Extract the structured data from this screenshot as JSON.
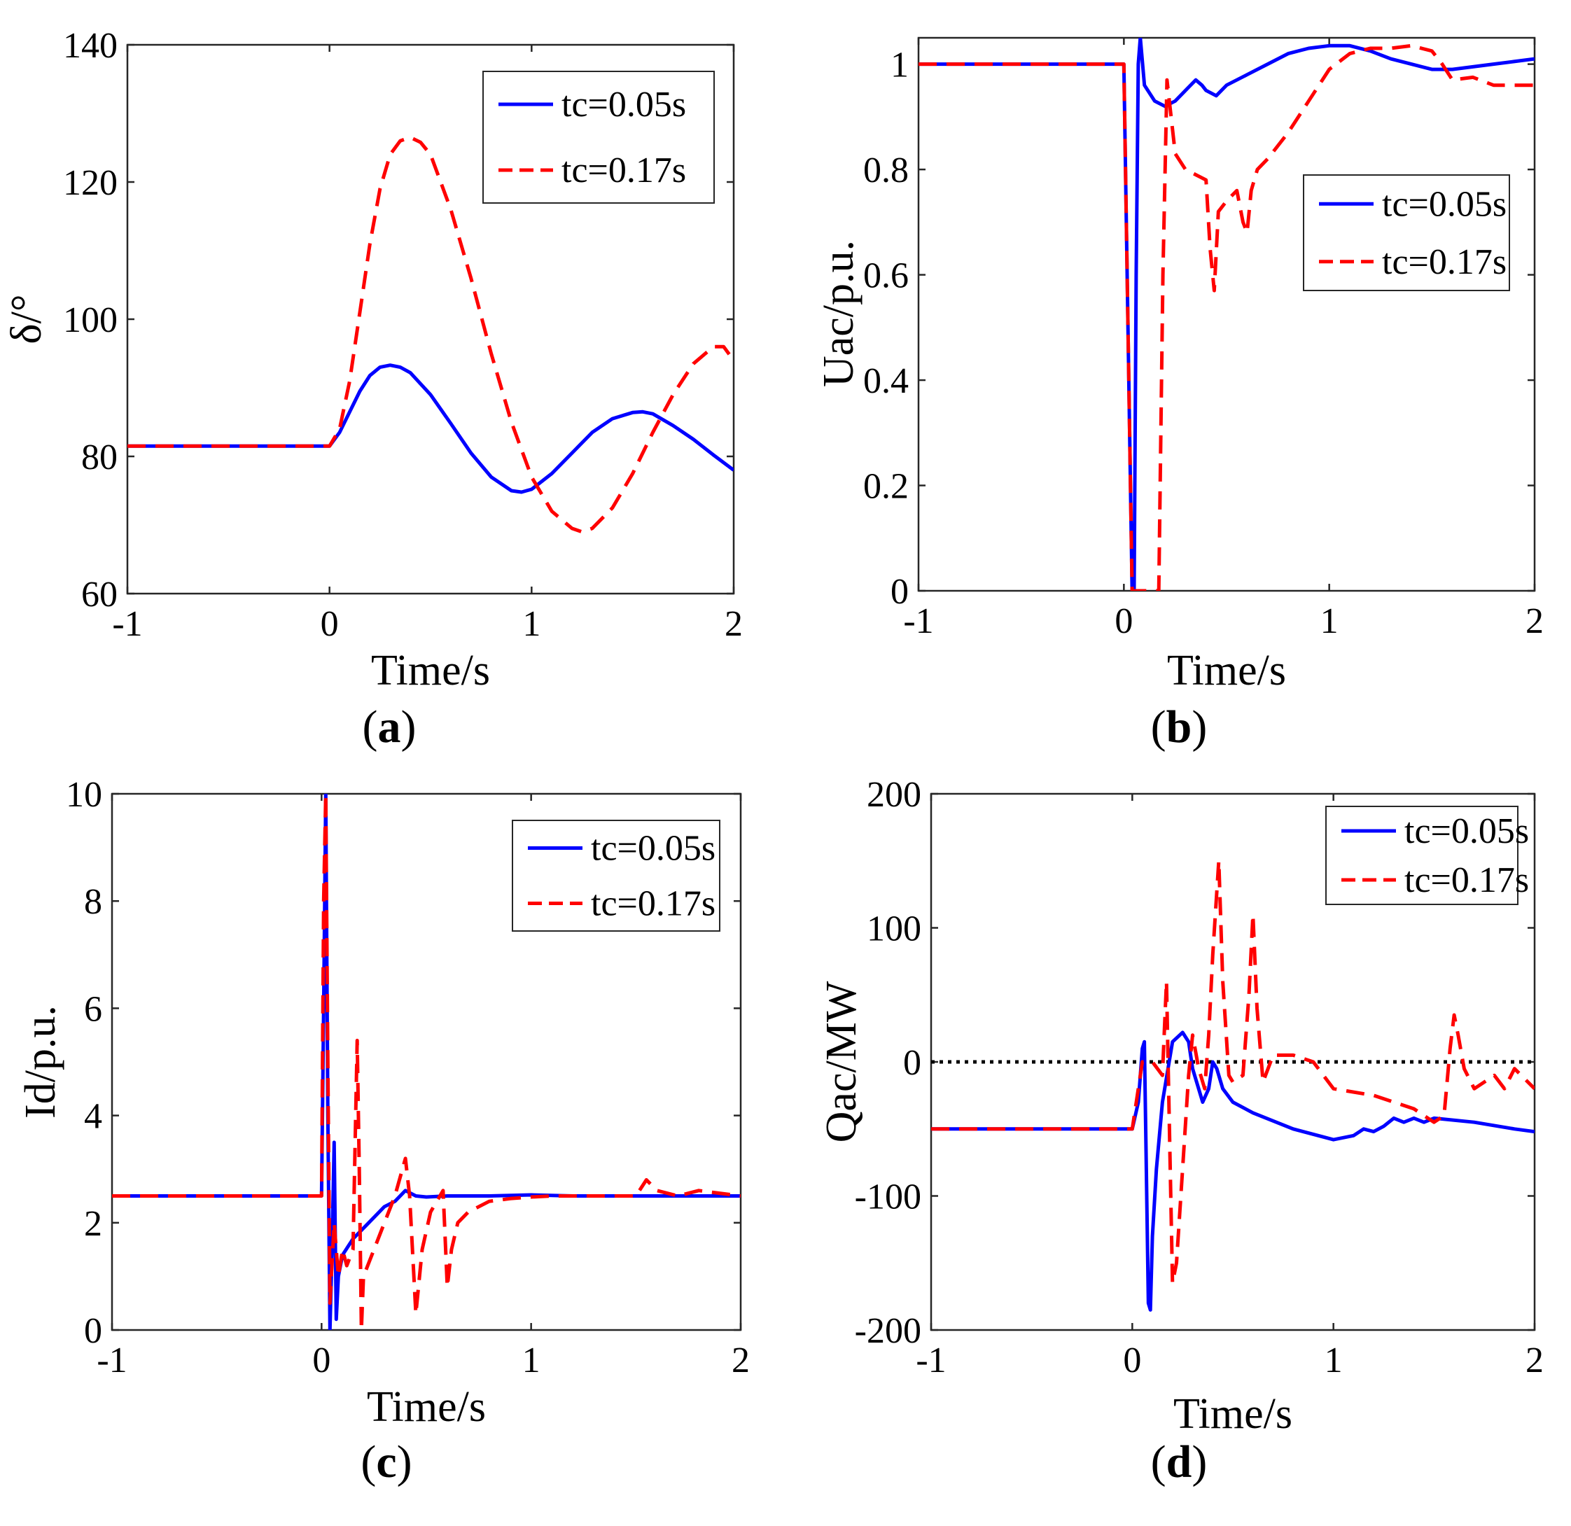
{
  "chart_data": [
    {
      "panel": "a",
      "type": "line",
      "caption_open": "(",
      "caption_letter": "a",
      "caption_close": ")",
      "xlabel": "Time/s",
      "ylabel": "δ/°",
      "xlim": [
        -1,
        2
      ],
      "ylim": [
        60,
        140
      ],
      "xticks": [
        -1,
        0,
        1,
        2
      ],
      "xtick_labels": [
        "-1",
        "0",
        "1",
        "2"
      ],
      "yticks": [
        60,
        80,
        100,
        120,
        140
      ],
      "ytick_labels": [
        "60",
        "80",
        "100",
        "120",
        "140"
      ],
      "legend": {
        "position": "top-right",
        "entries": [
          "tc=0.05s",
          "tc=0.17s"
        ]
      },
      "series": [
        {
          "name": "tc=0.05s",
          "color": "#0000ff",
          "dash": "solid",
          "x": [
            -1,
            0,
            0.05,
            0.1,
            0.15,
            0.2,
            0.25,
            0.3,
            0.35,
            0.4,
            0.5,
            0.6,
            0.7,
            0.8,
            0.9,
            0.95,
            1.0,
            1.1,
            1.2,
            1.3,
            1.4,
            1.5,
            1.55,
            1.6,
            1.7,
            1.8,
            1.9,
            2.0
          ],
          "y": [
            81.5,
            81.5,
            83.5,
            86.5,
            89.5,
            91.8,
            93.0,
            93.3,
            93.0,
            92.2,
            89.0,
            84.8,
            80.5,
            77.0,
            75.0,
            74.8,
            75.2,
            77.5,
            80.5,
            83.5,
            85.5,
            86.4,
            86.5,
            86.2,
            84.5,
            82.5,
            80.2,
            78.0
          ]
        },
        {
          "name": "tc=0.17s",
          "color": "#ff0000",
          "dash": "dashed",
          "x": [
            -1,
            0,
            0.05,
            0.1,
            0.15,
            0.2,
            0.25,
            0.3,
            0.35,
            0.4,
            0.45,
            0.5,
            0.6,
            0.7,
            0.8,
            0.9,
            1.0,
            1.1,
            1.2,
            1.25,
            1.3,
            1.4,
            1.5,
            1.6,
            1.7,
            1.8,
            1.9,
            1.95,
            2.0
          ],
          "y": [
            81.5,
            81.5,
            84,
            91,
            101,
            111,
            119,
            124,
            126,
            126.5,
            125.8,
            124,
            116,
            106,
            95,
            85,
            77,
            72,
            69.5,
            69,
            69.5,
            72.5,
            77.5,
            83.5,
            89,
            93.5,
            96,
            96,
            94
          ]
        }
      ]
    },
    {
      "panel": "b",
      "type": "line",
      "caption_open": "(",
      "caption_letter": "b",
      "caption_close": ")",
      "xlabel": "Time/s",
      "ylabel": "Uac/p.u.",
      "xlim": [
        -1,
        2
      ],
      "ylim": [
        0,
        1.05
      ],
      "xticks": [
        -1,
        0,
        1,
        2
      ],
      "xtick_labels": [
        "-1",
        "0",
        "1",
        "2"
      ],
      "yticks": [
        0,
        0.2,
        0.4,
        0.6,
        0.8,
        1
      ],
      "ytick_labels": [
        "0",
        "0.2",
        "0.4",
        "0.6",
        "0.8",
        "1"
      ],
      "legend": {
        "position": "right",
        "entries": [
          "tc=0.05s",
          "tc=0.17s"
        ]
      },
      "series": [
        {
          "name": "tc=0.05s",
          "color": "#0000ff",
          "dash": "solid",
          "x": [
            -1,
            0,
            0.02,
            0.04,
            0.05,
            0.06,
            0.07,
            0.08,
            0.1,
            0.15,
            0.2,
            0.25,
            0.3,
            0.35,
            0.38,
            0.4,
            0.45,
            0.5,
            0.6,
            0.7,
            0.8,
            0.9,
            1.0,
            1.1,
            1.2,
            1.3,
            1.4,
            1.5,
            1.6,
            1.7,
            1.8,
            1.9,
            2.0
          ],
          "y": [
            1.0,
            1.0,
            0.5,
            0.0,
            0.0,
            0.6,
            1.0,
            1.05,
            0.96,
            0.93,
            0.92,
            0.93,
            0.95,
            0.97,
            0.96,
            0.95,
            0.94,
            0.96,
            0.98,
            1.0,
            1.02,
            1.03,
            1.035,
            1.035,
            1.025,
            1.01,
            1.0,
            0.99,
            0.99,
            0.995,
            1.0,
            1.005,
            1.01
          ]
        },
        {
          "name": "tc=0.17s",
          "color": "#ff0000",
          "dash": "dashed",
          "x": [
            -1,
            0,
            0.02,
            0.04,
            0.17,
            0.19,
            0.21,
            0.25,
            0.3,
            0.35,
            0.4,
            0.42,
            0.44,
            0.46,
            0.5,
            0.55,
            0.58,
            0.6,
            0.62,
            0.65,
            0.7,
            0.8,
            0.9,
            1.0,
            1.1,
            1.2,
            1.3,
            1.4,
            1.5,
            1.55,
            1.6,
            1.7,
            1.8,
            1.9,
            2.0
          ],
          "y": [
            1.0,
            1.0,
            0.5,
            0.0,
            0.0,
            0.6,
            0.97,
            0.83,
            0.8,
            0.79,
            0.78,
            0.65,
            0.57,
            0.72,
            0.74,
            0.76,
            0.7,
            0.68,
            0.76,
            0.8,
            0.82,
            0.87,
            0.93,
            0.99,
            1.02,
            1.03,
            1.03,
            1.035,
            1.025,
            1.0,
            0.97,
            0.975,
            0.96,
            0.96,
            0.96
          ]
        }
      ]
    },
    {
      "panel": "c",
      "type": "line",
      "caption_open": "(",
      "caption_letter": "c",
      "caption_close": ")",
      "xlabel": "Time/s",
      "ylabel": "Id/p.u.",
      "xlim": [
        -1,
        2
      ],
      "ylim": [
        0,
        10
      ],
      "xticks": [
        -1,
        0,
        1,
        2
      ],
      "xtick_labels": [
        "-1",
        "0",
        "1",
        "2"
      ],
      "yticks": [
        0,
        2,
        4,
        6,
        8,
        10
      ],
      "ytick_labels": [
        "0",
        "2",
        "4",
        "6",
        "8",
        "10"
      ],
      "legend": {
        "position": "top-right",
        "entries": [
          "tc=0.05s",
          "tc=0.17s"
        ]
      },
      "series": [
        {
          "name": "tc=0.05s",
          "color": "#0000ff",
          "dash": "solid",
          "x": [
            -1,
            0,
            0.01,
            0.02,
            0.03,
            0.04,
            0.05,
            0.06,
            0.07,
            0.08,
            0.1,
            0.15,
            0.2,
            0.25,
            0.3,
            0.35,
            0.4,
            0.45,
            0.5,
            0.6,
            0.8,
            1.0,
            1.2,
            1.4,
            1.6,
            1.8,
            2.0
          ],
          "y": [
            2.5,
            2.5,
            6.0,
            10.0,
            4.0,
            0.0,
            1.5,
            3.5,
            0.2,
            1.0,
            1.4,
            1.7,
            1.9,
            2.1,
            2.3,
            2.4,
            2.6,
            2.5,
            2.48,
            2.5,
            2.5,
            2.52,
            2.5,
            2.5,
            2.5,
            2.5,
            2.5
          ]
        },
        {
          "name": "tc=0.17s",
          "color": "#ff0000",
          "dash": "dashed",
          "x": [
            -1,
            0,
            0.01,
            0.02,
            0.03,
            0.04,
            0.06,
            0.08,
            0.1,
            0.12,
            0.15,
            0.17,
            0.18,
            0.19,
            0.2,
            0.25,
            0.3,
            0.35,
            0.4,
            0.42,
            0.45,
            0.48,
            0.52,
            0.58,
            0.6,
            0.62,
            0.65,
            0.7,
            0.8,
            0.9,
            1.0,
            1.1,
            1.2,
            1.4,
            1.5,
            1.55,
            1.6,
            1.7,
            1.8,
            2.0
          ],
          "y": [
            2.5,
            2.5,
            8.0,
            10.0,
            5.0,
            0.5,
            2.0,
            1.0,
            1.5,
            1.2,
            1.5,
            5.4,
            3.0,
            0.0,
            1.0,
            1.5,
            2.0,
            2.5,
            3.2,
            2.5,
            0.3,
            1.5,
            2.2,
            2.6,
            0.8,
            1.5,
            2.0,
            2.2,
            2.4,
            2.45,
            2.48,
            2.5,
            2.5,
            2.5,
            2.5,
            2.8,
            2.6,
            2.5,
            2.6,
            2.5
          ]
        }
      ]
    },
    {
      "panel": "d",
      "type": "line",
      "caption_open": "(",
      "caption_letter": "d",
      "caption_close": ")",
      "xlabel": "Time/s",
      "ylabel": "Qac/MW",
      "xlim": [
        -1,
        2
      ],
      "ylim": [
        -200,
        200
      ],
      "xticks": [
        -1,
        0,
        1,
        2
      ],
      "xtick_labels": [
        "-1",
        "0",
        "1",
        "2"
      ],
      "yticks": [
        -200,
        -100,
        0,
        100,
        200
      ],
      "ytick_labels": [
        "-200",
        "-100",
        "0",
        "100",
        "200"
      ],
      "reference_line": {
        "y": 0,
        "color": "#000000",
        "dash": "dotted"
      },
      "legend": {
        "position": "top-right",
        "entries": [
          "tc=0.05s",
          "tc=0.17s"
        ]
      },
      "series": [
        {
          "name": "tc=0.05s",
          "color": "#0000ff",
          "dash": "solid",
          "x": [
            -1,
            0,
            0.03,
            0.05,
            0.06,
            0.07,
            0.08,
            0.09,
            0.1,
            0.12,
            0.15,
            0.2,
            0.25,
            0.28,
            0.3,
            0.35,
            0.38,
            0.4,
            0.42,
            0.45,
            0.5,
            0.6,
            0.8,
            1.0,
            1.1,
            1.15,
            1.2,
            1.25,
            1.3,
            1.35,
            1.4,
            1.45,
            1.5,
            1.7,
            1.9,
            2.0
          ],
          "y": [
            -50,
            -50,
            -30,
            10,
            15,
            -80,
            -180,
            -185,
            -130,
            -80,
            -30,
            15,
            22,
            15,
            -5,
            -30,
            -20,
            0,
            -5,
            -20,
            -30,
            -38,
            -50,
            -58,
            -55,
            -50,
            -52,
            -48,
            -42,
            -45,
            -42,
            -45,
            -42,
            -45,
            -50,
            -52
          ]
        },
        {
          "name": "tc=0.17s",
          "color": "#ff0000",
          "dash": "dashed",
          "x": [
            -1,
            0,
            0.05,
            0.1,
            0.15,
            0.17,
            0.2,
            0.22,
            0.25,
            0.28,
            0.3,
            0.33,
            0.36,
            0.38,
            0.4,
            0.43,
            0.45,
            0.48,
            0.5,
            0.55,
            0.58,
            0.6,
            0.62,
            0.65,
            0.7,
            0.8,
            0.9,
            1.0,
            1.2,
            1.4,
            1.5,
            1.55,
            1.58,
            1.6,
            1.62,
            1.65,
            1.7,
            1.8,
            1.85,
            1.9,
            2.0
          ],
          "y": [
            -50,
            -50,
            0,
            0,
            -10,
            60,
            -165,
            -150,
            -80,
            -10,
            20,
            -5,
            -20,
            20,
            80,
            150,
            60,
            -10,
            -15,
            -10,
            50,
            110,
            40,
            -15,
            5,
            5,
            0,
            -20,
            -25,
            -35,
            -45,
            -40,
            10,
            35,
            20,
            -5,
            -20,
            -10,
            -20,
            -5,
            -20
          ]
        }
      ]
    }
  ]
}
